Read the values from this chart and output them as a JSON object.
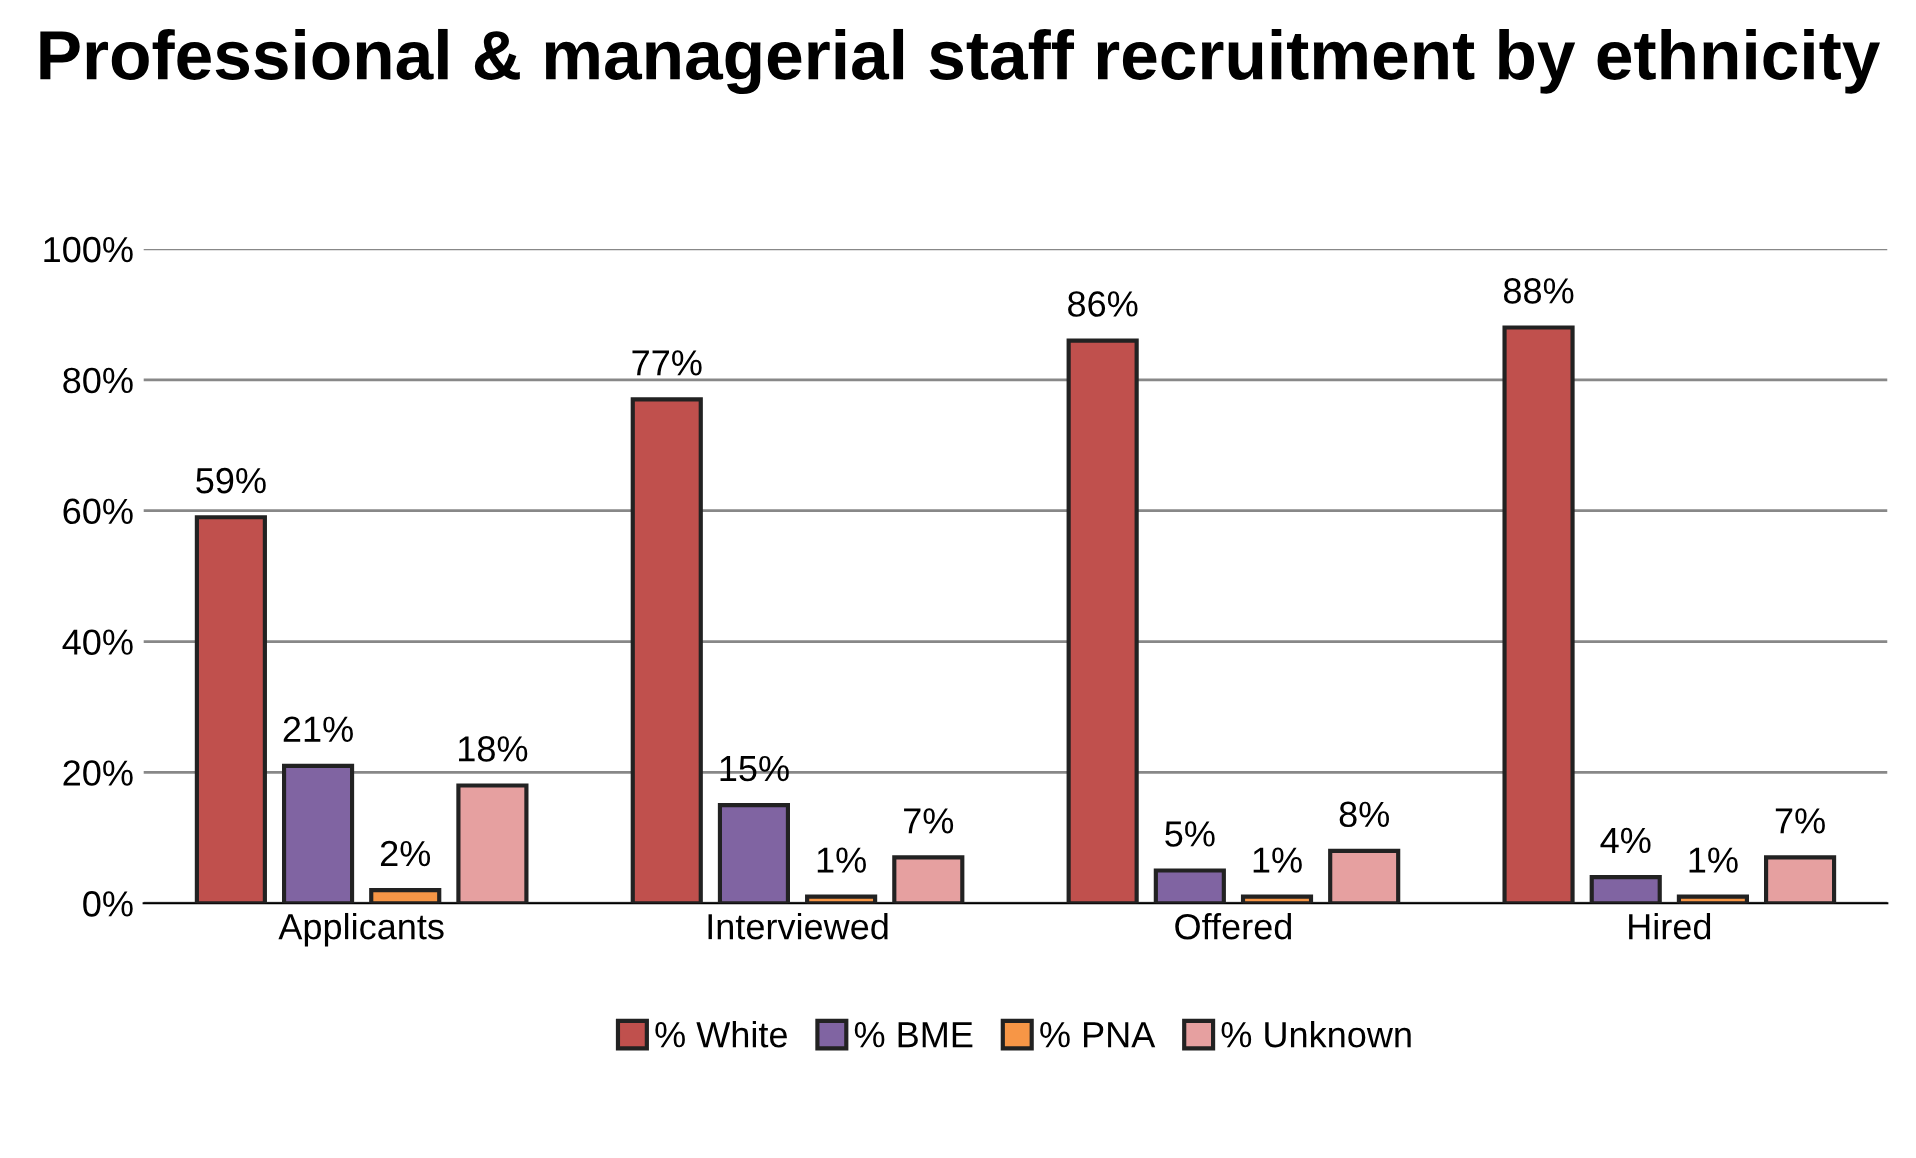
{
  "chart_data": {
    "type": "bar",
    "title": "Professional & managerial staff recruitment by ethnicity",
    "categories": [
      "Applicants",
      "Interviewed",
      "Offered",
      "Hired"
    ],
    "series": [
      {
        "name": "% White",
        "color": "#c0504d",
        "values": [
          59,
          77,
          86,
          88
        ],
        "value_labels": [
          "59%",
          "77%",
          "86%",
          "88%"
        ]
      },
      {
        "name": "% BME",
        "color": "#8064a2",
        "values": [
          21,
          15,
          5,
          4
        ],
        "value_labels": [
          "21%",
          "15%",
          "5%",
          "4%"
        ]
      },
      {
        "name": "% PNA",
        "color": "#f79646",
        "values": [
          2,
          1,
          1,
          1
        ],
        "value_labels": [
          "2%",
          "1%",
          "1%",
          "1%"
        ]
      },
      {
        "name": "% Unknown",
        "color": "#e6a0a0",
        "values": [
          18,
          7,
          8,
          7
        ],
        "value_labels": [
          "18%",
          "7%",
          "8%",
          "7%"
        ]
      }
    ],
    "ylim": [
      0,
      100
    ],
    "yticks": [
      {
        "value": 0,
        "label": "0%"
      },
      {
        "value": 20,
        "label": "20%"
      },
      {
        "value": 40,
        "label": "40%"
      },
      {
        "value": 60,
        "label": "60%"
      },
      {
        "value": 80,
        "label": "80%"
      },
      {
        "value": 100,
        "label": "100%"
      }
    ],
    "grid": "y",
    "legend": "bottom"
  }
}
